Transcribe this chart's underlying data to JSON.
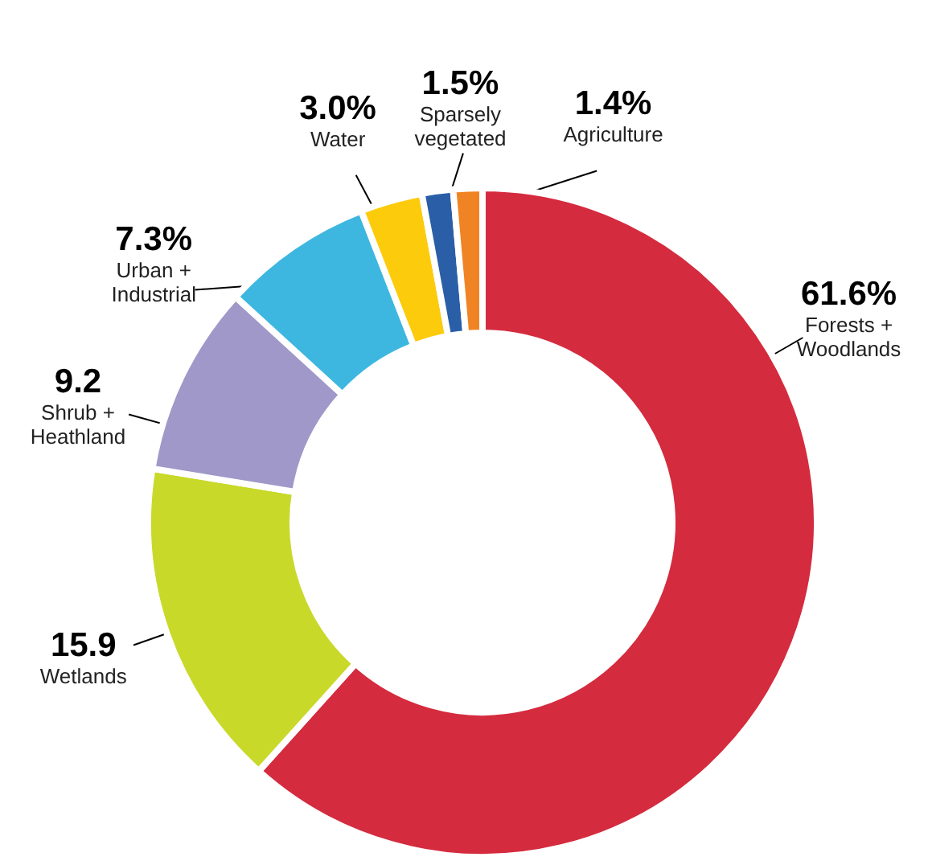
{
  "chart_data": {
    "type": "donut",
    "categories": [
      "Forests +\nWoodlands",
      "Wetlands",
      "Shrub +\nHeathland",
      "Urban +\nIndustrial",
      "Water",
      "Sparsely\nvegetated",
      "Agriculture"
    ],
    "values": [
      61.6,
      15.9,
      9.2,
      7.3,
      3.0,
      1.5,
      1.4
    ],
    "value_labels": [
      "61.6%",
      "15.9",
      "9.2",
      "7.3%",
      "3.0%",
      "1.5%",
      "1.4%"
    ],
    "colors": [
      "#d42b3e",
      "#c8d92a",
      "#9f98c9",
      "#3db7e0",
      "#fccb0b",
      "#2a5fa8",
      "#f08323"
    ]
  }
}
